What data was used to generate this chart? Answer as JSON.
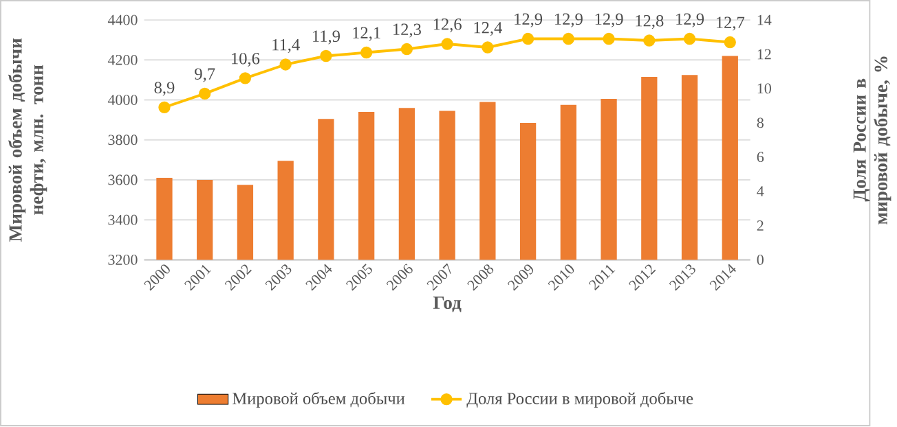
{
  "chart_data": {
    "type": "bar",
    "ylabel": "Мировой объем добычи нефти, млн. тонн",
    "y2label": "Доля России в мировой добыче, %",
    "xlabel": "Год",
    "categories": [
      "2000",
      "2001",
      "2002",
      "2003",
      "2004",
      "2005",
      "2006",
      "2007",
      "2008",
      "2009",
      "2010",
      "2011",
      "2012",
      "2013",
      "2014"
    ],
    "series": [
      {
        "name": "Мировой объем добычи",
        "color": "#ed7d31",
        "values": [
          3610,
          3600,
          3575,
          3695,
          3905,
          3940,
          3960,
          3945,
          3990,
          3885,
          3975,
          4005,
          4115,
          4125,
          4220
        ]
      },
      {
        "name": "Доля России в мировой добыче",
        "type": "line",
        "axis": "y2",
        "color": "#ffc000",
        "marker": "circle",
        "values": [
          8.9,
          9.7,
          10.6,
          11.4,
          11.9,
          12.1,
          12.3,
          12.6,
          12.4,
          12.9,
          12.9,
          12.9,
          12.8,
          12.9,
          12.7
        ],
        "value_labels": [
          "8,9",
          "9,7",
          "10,6",
          "11,4",
          "11,9",
          "12,1",
          "12,3",
          "12,6",
          "12,4",
          "12,9",
          "12,9",
          "12,9",
          "12,8",
          "12,9",
          "12,7"
        ]
      }
    ],
    "ylim": [
      3200,
      4400
    ],
    "yticks": [
      3200,
      3400,
      3600,
      3800,
      4000,
      4200,
      4400
    ],
    "y2lim": [
      0,
      14
    ],
    "y2ticks": [
      0,
      2,
      4,
      6,
      8,
      10,
      12,
      14
    ],
    "grid": "y",
    "legend": "bottom"
  }
}
